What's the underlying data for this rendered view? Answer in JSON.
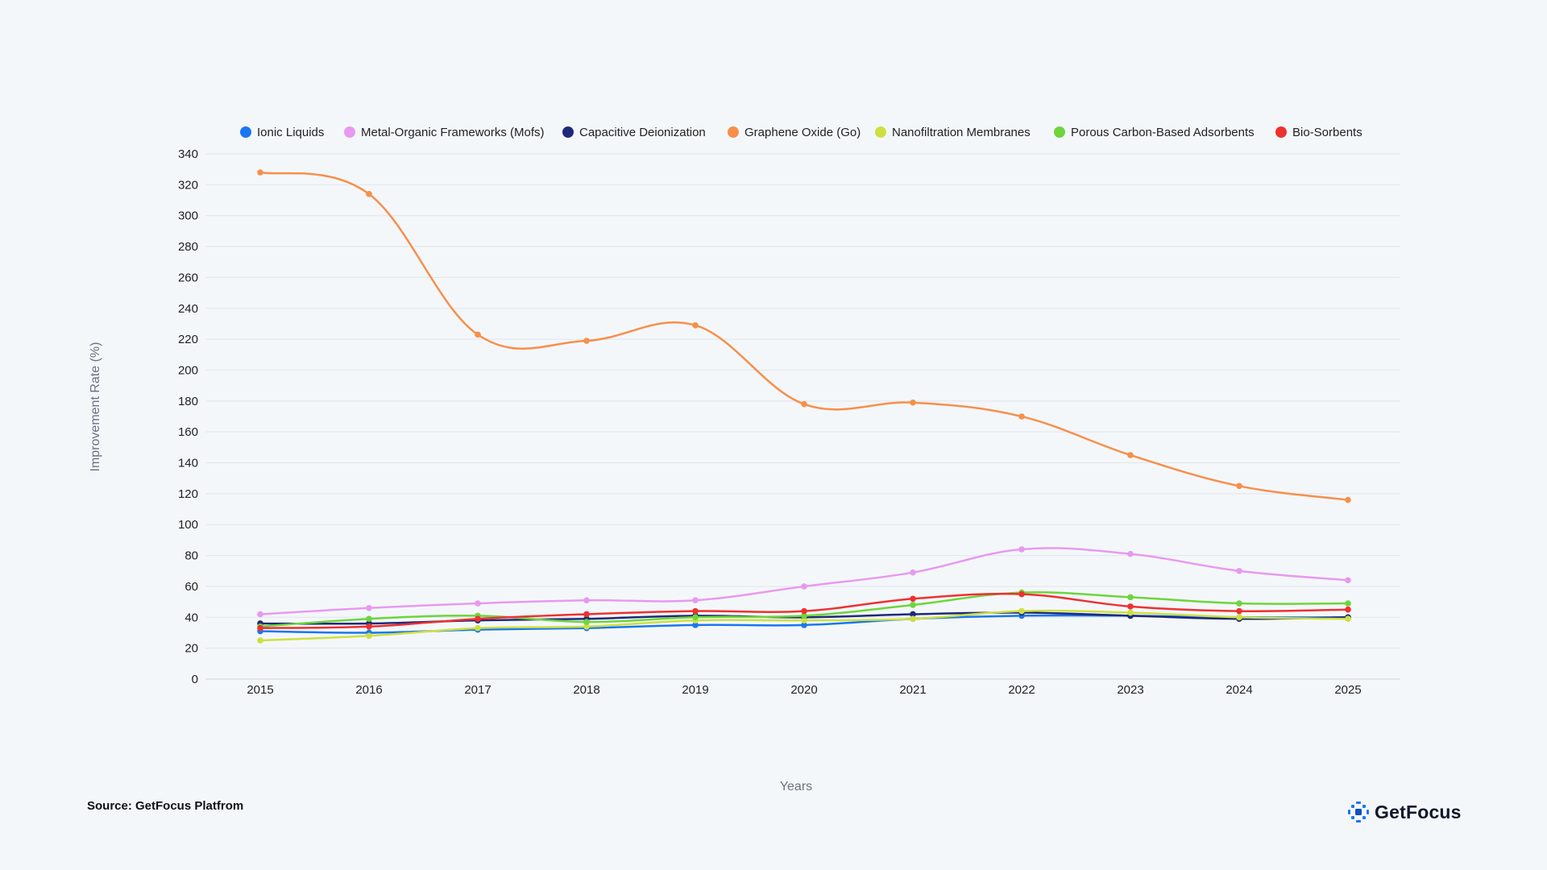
{
  "source_text": "Source: GetFocus Platfrom",
  "brand": {
    "name": "GetFocus",
    "logo_icon": "getfocus-logo-icon"
  },
  "chart_data": {
    "type": "line",
    "xlabel": "Years",
    "ylabel": "Improvement Rate (%)",
    "categories": [
      "2015",
      "2016",
      "2017",
      "2018",
      "2019",
      "2020",
      "2021",
      "2022",
      "2023",
      "2024",
      "2025"
    ],
    "ylim": [
      0,
      340
    ],
    "yticks": [
      0,
      20,
      40,
      60,
      80,
      100,
      120,
      140,
      160,
      180,
      200,
      220,
      240,
      260,
      280,
      300,
      320,
      340
    ],
    "grid": true,
    "legend_position": "top",
    "series": [
      {
        "name": "Ionic Liquids",
        "color": "#1877f2",
        "values": [
          31,
          30,
          32,
          33,
          35,
          35,
          39,
          41,
          41,
          40,
          40
        ]
      },
      {
        "name": "Metal-Organic Frameworks (Mofs)",
        "color": "#e899f0",
        "values": [
          42,
          46,
          49,
          51,
          51,
          60,
          69,
          84,
          81,
          70,
          64
        ]
      },
      {
        "name": "Capacitive Deionization",
        "color": "#1e2a78",
        "values": [
          36,
          36,
          38,
          39,
          41,
          40,
          42,
          43,
          41,
          39,
          40
        ]
      },
      {
        "name": "Graphene Oxide (Go)",
        "color": "#f78f4b",
        "values": [
          328,
          314,
          223,
          219,
          229,
          178,
          179,
          170,
          145,
          125,
          116
        ]
      },
      {
        "name": "Nanofiltration Membranes",
        "color": "#cde040",
        "values": [
          25,
          28,
          33,
          34,
          38,
          38,
          39,
          44,
          43,
          40,
          39
        ]
      },
      {
        "name": "Porous Carbon-Based Adsorbents",
        "color": "#6cd63b",
        "values": [
          34,
          39,
          41,
          37,
          40,
          41,
          48,
          56,
          53,
          49,
          49
        ]
      },
      {
        "name": "Bio-Sorbents",
        "color": "#ef3030",
        "values": [
          33,
          34,
          39,
          42,
          44,
          44,
          52,
          55,
          47,
          44,
          45
        ]
      }
    ]
  }
}
